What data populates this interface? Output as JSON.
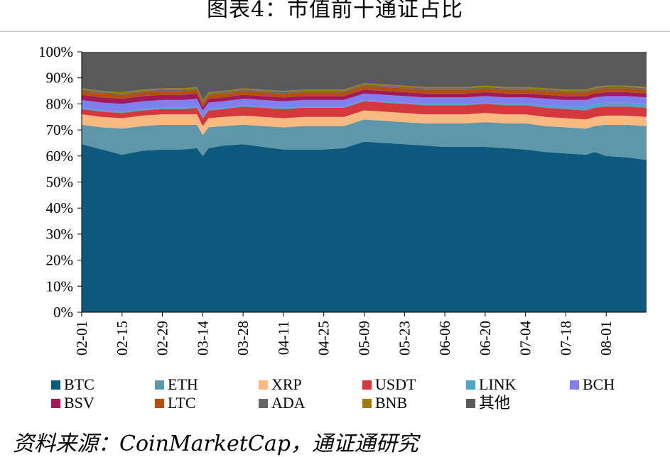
{
  "title": "图表4：市值前十通证占比",
  "source": "资料来源：CoinMarketCap，通证通研究",
  "chart_data": {
    "type": "area",
    "stacked": true,
    "y_format": "percent",
    "ylim": [
      0,
      100
    ],
    "y_ticks": [
      "0%",
      "10%",
      "20%",
      "30%",
      "40%",
      "50%",
      "60%",
      "70%",
      "80%",
      "90%",
      "100%"
    ],
    "x_ticks": [
      "02-01",
      "02-15",
      "02-29",
      "03-14",
      "03-28",
      "04-11",
      "04-25",
      "05-09",
      "05-23",
      "06-06",
      "06-20",
      "07-04",
      "07-18",
      "08-01"
    ],
    "x": [
      "02-01",
      "02-08",
      "02-15",
      "02-22",
      "02-29",
      "03-07",
      "03-12",
      "03-14",
      "03-16",
      "03-21",
      "03-28",
      "04-04",
      "04-11",
      "04-18",
      "04-25",
      "05-02",
      "05-09",
      "05-16",
      "05-23",
      "05-30",
      "06-06",
      "06-13",
      "06-20",
      "06-27",
      "07-04",
      "07-11",
      "07-18",
      "07-25",
      "07-28",
      "08-01",
      "08-08",
      "08-15"
    ],
    "legend_position": "bottom",
    "series": [
      {
        "name": "BTC",
        "color": "#0e5a7e",
        "values": [
          64.5,
          62.5,
          60.5,
          62,
          62.5,
          62.5,
          63,
          60,
          63,
          64,
          64.5,
          63.5,
          62.5,
          62.5,
          62.5,
          63,
          65.5,
          65,
          64.5,
          64,
          63.5,
          63.5,
          63.5,
          63,
          62.5,
          61.5,
          61,
          60.5,
          61.5,
          60,
          59.5,
          58.5
        ]
      },
      {
        "name": "ETH",
        "color": "#5f97aa",
        "values": [
          7.5,
          8.5,
          10,
          9.5,
          9.5,
          9.5,
          9,
          8,
          8,
          7.5,
          7.5,
          8,
          8.5,
          9,
          9,
          8.5,
          8.5,
          8.5,
          8.5,
          8.5,
          9,
          9,
          9.5,
          9.5,
          10,
          10,
          10,
          10,
          10,
          12,
          12.5,
          13
        ]
      },
      {
        "name": "XRP",
        "color": "#f9ba82",
        "values": [
          4,
          4,
          4,
          4,
          4,
          4,
          4,
          3.5,
          3.5,
          3.5,
          3.5,
          3.5,
          3.5,
          3.5,
          3.5,
          3.5,
          3.5,
          3.5,
          3.5,
          3.5,
          3.5,
          3.5,
          3.5,
          3.5,
          3.5,
          3.5,
          3.5,
          3.5,
          3.5,
          3.5,
          3.5,
          3.5
        ]
      },
      {
        "name": "USDT",
        "color": "#d4383d",
        "values": [
          2,
          2,
          2,
          2,
          2,
          2,
          2.5,
          3,
          3,
          3,
          3.5,
          3.5,
          3.5,
          3.5,
          3.5,
          3.5,
          3.5,
          3.5,
          3.5,
          3.5,
          3.5,
          3.5,
          3.5,
          3.5,
          3.5,
          3.5,
          3.5,
          3.5,
          3.5,
          3.5,
          3.5,
          3.5
        ]
      },
      {
        "name": "LINK",
        "color": "#50a3c9",
        "values": [
          0.5,
          0.5,
          0.5,
          0.5,
          0.5,
          0.5,
          0.5,
          0.5,
          0.5,
          0.5,
          0.5,
          0.5,
          0.5,
          0.5,
          0.5,
          0.5,
          0.5,
          0.5,
          0.5,
          0.5,
          0.5,
          0.5,
          0.5,
          0.5,
          0.5,
          1,
          1,
          1.5,
          1.5,
          1.5,
          1.5,
          1.5
        ]
      },
      {
        "name": "BCH",
        "color": "#7f7ff0",
        "values": [
          3,
          3,
          3,
          3,
          3,
          3,
          3,
          2.5,
          2.5,
          2.5,
          2.5,
          2.5,
          2.5,
          2.5,
          2.5,
          2.5,
          2.5,
          2.5,
          2.5,
          2.5,
          2.5,
          2.5,
          2.5,
          2.5,
          2.5,
          2.5,
          2.5,
          2.5,
          2.5,
          2.5,
          2.5,
          2.5
        ]
      },
      {
        "name": "BSV",
        "color": "#a31a58",
        "values": [
          2,
          2,
          2,
          2,
          2,
          2,
          2,
          1.5,
          1.5,
          1.5,
          1.5,
          1.5,
          1.5,
          1.5,
          1.5,
          1.5,
          1.5,
          1.5,
          1.5,
          1.5,
          1.5,
          1.5,
          1.5,
          1.5,
          1.5,
          1.5,
          1.5,
          1.5,
          1.5,
          1.5,
          1.5,
          1.5
        ]
      },
      {
        "name": "LTC",
        "color": "#b2510f",
        "values": [
          1.5,
          1.5,
          1.5,
          1.5,
          1.5,
          1.5,
          1.5,
          1.5,
          1.5,
          1.5,
          1.5,
          1.5,
          1.5,
          1.5,
          1.5,
          1.5,
          1.5,
          1.5,
          1.5,
          1.5,
          1.5,
          1.5,
          1.5,
          1.5,
          1.5,
          1.5,
          1.5,
          1.5,
          1.5,
          1.5,
          1.5,
          1.5
        ]
      },
      {
        "name": "ADA",
        "color": "#666666",
        "values": [
          0.5,
          0.5,
          0.5,
          0.5,
          0.5,
          0.5,
          0.5,
          0.5,
          0.5,
          0.5,
          0.5,
          0.5,
          0.5,
          0.5,
          0.5,
          0.5,
          0.5,
          0.5,
          0.5,
          0.5,
          0.5,
          0.5,
          0.5,
          0.5,
          0.5,
          0.5,
          0.5,
          0.5,
          0.5,
          0.5,
          0.5,
          0.5
        ]
      },
      {
        "name": "BNB",
        "color": "#9c7d10",
        "values": [
          0.5,
          0.5,
          0.5,
          0.5,
          0.5,
          0.5,
          0.5,
          0.5,
          0.5,
          0.5,
          0.5,
          0.5,
          0.5,
          0.5,
          0.5,
          0.5,
          0.5,
          0.5,
          0.5,
          0.5,
          0.5,
          0.5,
          0.5,
          0.5,
          0.5,
          0.5,
          0.5,
          0.5,
          0.5,
          0.5,
          0.5,
          0.5
        ]
      },
      {
        "name": "其他",
        "color": "#595959",
        "values": [
          14,
          15,
          15.5,
          14.5,
          14,
          14,
          13.5,
          22.5,
          15.5,
          15.5,
          14.5,
          14.5,
          15,
          14.5,
          14.5,
          14.5,
          12,
          12.5,
          13,
          13.5,
          13.5,
          13.5,
          13,
          13.5,
          14,
          14,
          14.5,
          14.5,
          13.5,
          13.5,
          13.5,
          13.5
        ]
      }
    ]
  }
}
